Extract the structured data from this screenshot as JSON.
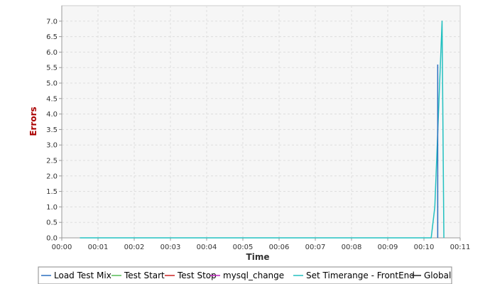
{
  "chart_data": {
    "type": "line",
    "xlabel": "Time",
    "ylabel": "Errors",
    "x_ticks": [
      "00:00",
      "00:01",
      "00:02",
      "00:03",
      "00:04",
      "00:05",
      "00:06",
      "00:07",
      "00:08",
      "00:09",
      "00:10",
      "00:11"
    ],
    "y_ticks": [
      "0.0",
      "0.5",
      "1.0",
      "1.5",
      "2.0",
      "2.5",
      "3.0",
      "3.5",
      "4.0",
      "4.5",
      "5.0",
      "5.5",
      "6.0",
      "6.5",
      "7.0"
    ],
    "xlim": [
      0,
      11
    ],
    "ylim": [
      0,
      7.5
    ],
    "grid": true,
    "legend_position": "bottom",
    "series": [
      {
        "name": "Load Test Mix",
        "color": "#2a6ebf",
        "points": [
          [
            10.38,
            0
          ],
          [
            10.38,
            5.6
          ]
        ]
      },
      {
        "name": "Test Start",
        "color": "#55bb55",
        "points": []
      },
      {
        "name": "Test Stop",
        "color": "#cc2222",
        "points": []
      },
      {
        "name": "mysql_change",
        "color": "#bb22bb",
        "points": []
      },
      {
        "name": "Set Timerange - FrontEnd",
        "color": "#22c0c0",
        "points": [
          [
            0.5,
            0
          ],
          [
            10.2,
            0
          ],
          [
            10.3,
            1.0
          ],
          [
            10.5,
            7.0
          ],
          [
            10.55,
            0
          ]
        ]
      },
      {
        "name": "Global",
        "color": "#222222",
        "points": []
      }
    ]
  },
  "colors": {
    "ylabel": "#aa0000",
    "xlabel": "#333333",
    "plot_background": "#f6f6f6",
    "grid": "#dddddd",
    "axis": "#999999"
  }
}
